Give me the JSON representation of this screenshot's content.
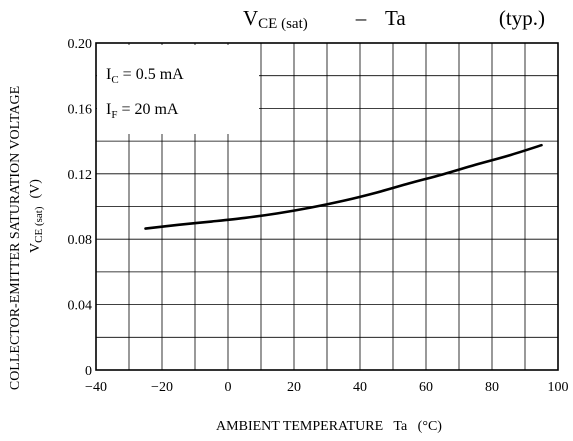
{
  "chart_data": {
    "type": "line",
    "title": {
      "main_prefix": "V",
      "main_sub": "CE (sat)",
      "separator": "–",
      "main_suffix": "Ta",
      "qualifier": "(typ.)"
    },
    "xlabel": "AMBIENT TEMPERATURE   Ta   (°C)",
    "ylabel": {
      "line1": "COLLECTOR-EMITTER SATURATION VOLTAGE",
      "line2_prefix": "V",
      "line2_sub": "CE (sat)",
      "line2_unit": "(V)"
    },
    "xlim": [
      -40,
      100
    ],
    "ylim": [
      0,
      0.2
    ],
    "x_ticks": [
      -40,
      -20,
      0,
      20,
      40,
      60,
      80,
      100
    ],
    "x_tick_labels": [
      "−40",
      "−20",
      "0",
      "20",
      "40",
      "60",
      "80",
      "100"
    ],
    "y_ticks": [
      0,
      0.04,
      0.08,
      0.12,
      0.16,
      0.2
    ],
    "y_tick_labels": [
      "0",
      "0.04",
      "0.08",
      "0.12",
      "0.16",
      "0.20"
    ],
    "x_grid_step": 10,
    "y_grid_step": 0.02,
    "grid": true,
    "conditions": [
      {
        "prefix": "I",
        "sub": "C",
        "value": " = 0.5 mA"
      },
      {
        "prefix": "I",
        "sub": "F",
        "value": " = 20 mA"
      }
    ],
    "series": [
      {
        "x": [
          -25,
          -15,
          -5,
          5,
          15,
          25,
          35,
          45,
          55,
          65,
          75,
          85,
          95
        ],
        "y": [
          0.0865,
          0.0888,
          0.0908,
          0.093,
          0.0958,
          0.0993,
          0.1035,
          0.1085,
          0.1142,
          0.1196,
          0.1255,
          0.1311,
          0.1375
        ]
      }
    ]
  }
}
